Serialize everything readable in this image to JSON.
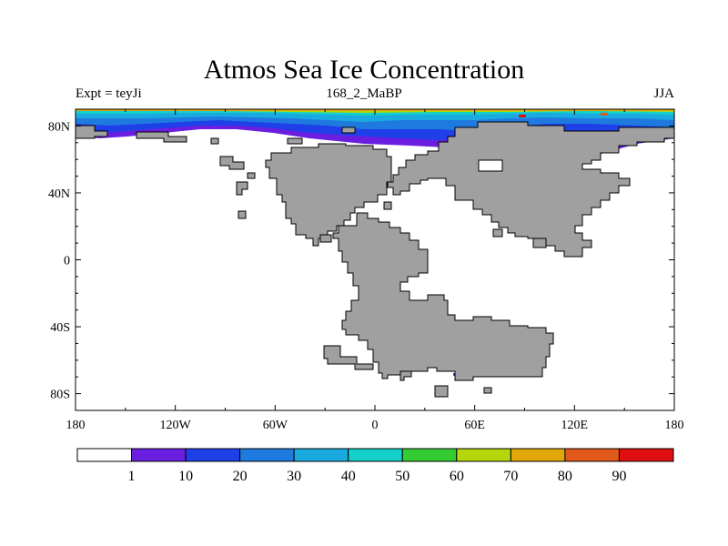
{
  "title": "Atmos Sea Ice Concentration",
  "subtitle_left": "Expt = teyJi",
  "subtitle_center": "168_2_MaBP",
  "subtitle_right": "JJA",
  "x_ticks": [
    "180",
    "120W",
    "60W",
    "0",
    "60E",
    "120E",
    "180"
  ],
  "y_ticks": [
    "80N",
    "40N",
    "0",
    "40S",
    "80S"
  ],
  "colorbar": {
    "labels": [
      "1",
      "10",
      "20",
      "30",
      "40",
      "50",
      "60",
      "70",
      "80",
      "90"
    ],
    "colors": [
      "#ffffff",
      "#6a1fe0",
      "#1f3fe8",
      "#1f7ae0",
      "#1aaae0",
      "#14d0c8",
      "#33cc33",
      "#b5d60c",
      "#e0a60a",
      "#e0581a",
      "#e00f0f"
    ]
  },
  "colors": {
    "land": "#a0a0a0",
    "coast": "#000000"
  }
}
